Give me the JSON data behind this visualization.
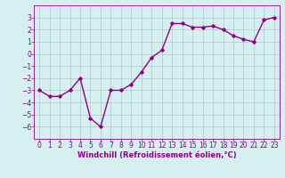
{
  "x": [
    0,
    1,
    2,
    3,
    4,
    5,
    6,
    7,
    8,
    9,
    10,
    11,
    12,
    13,
    14,
    15,
    16,
    17,
    18,
    19,
    20,
    21,
    22,
    23
  ],
  "y": [
    -3.0,
    -3.5,
    -3.5,
    -3.0,
    -2.0,
    -5.3,
    -6.0,
    -3.0,
    -3.0,
    -2.5,
    -1.5,
    -0.3,
    0.3,
    2.5,
    2.5,
    2.2,
    2.2,
    2.3,
    2.0,
    1.5,
    1.2,
    1.0,
    2.8,
    3.0
  ],
  "line_color": "#8B008B",
  "marker": "D",
  "marker_size": 1.8,
  "background_color": "#d6eff0",
  "grid_color": "#b0c8ca",
  "xlabel": "Windchill (Refroidissement éolien,°C)",
  "xlabel_color": "#8B008B",
  "tick_color": "#8B008B",
  "xlim": [
    -0.5,
    23.5
  ],
  "ylim": [
    -7,
    4
  ],
  "yticks": [
    -6,
    -5,
    -4,
    -3,
    -2,
    -1,
    0,
    1,
    2,
    3
  ],
  "xticks": [
    0,
    1,
    2,
    3,
    4,
    5,
    6,
    7,
    8,
    9,
    10,
    11,
    12,
    13,
    14,
    15,
    16,
    17,
    18,
    19,
    20,
    21,
    22,
    23
  ],
  "line_width": 1.0,
  "axis_fontsize": 5.5,
  "xlabel_fontsize": 6.0
}
